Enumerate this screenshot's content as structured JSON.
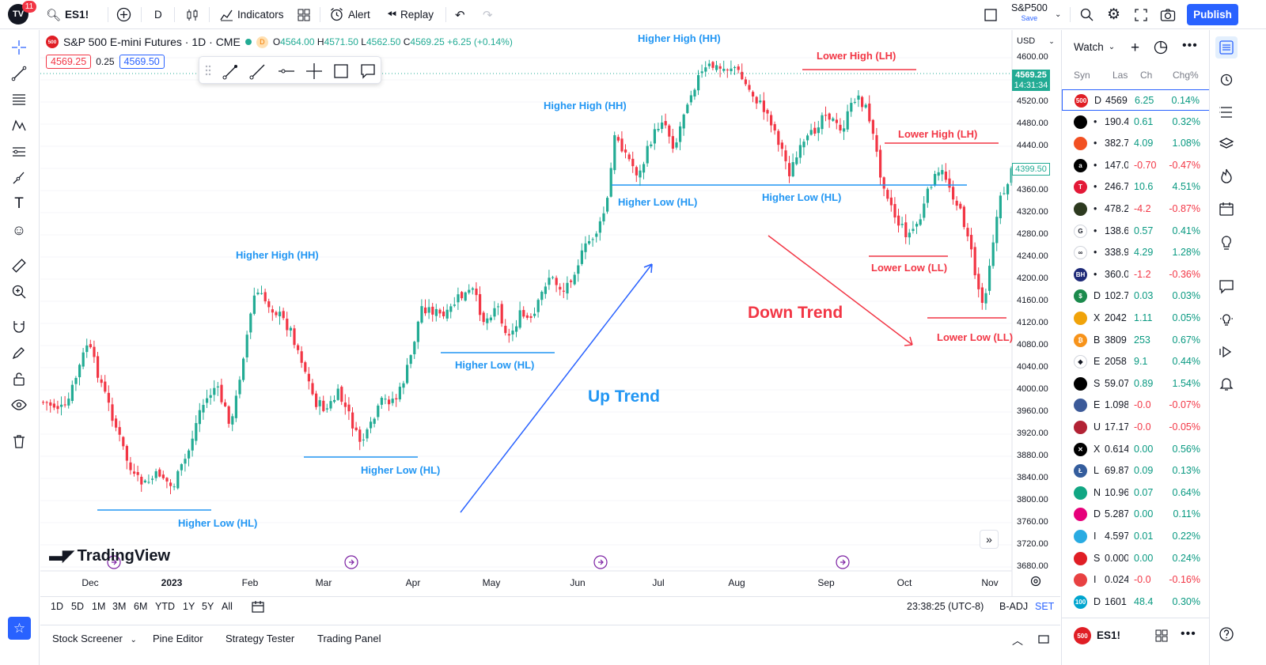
{
  "topbar": {
    "notifications": "11",
    "symbol": "ES1!",
    "interval": "D",
    "indicators": "Indicators",
    "alert": "Alert",
    "replay": "Replay",
    "layout_name": "S&P500",
    "layout_status": "Save",
    "publish": "Publish"
  },
  "legend": {
    "badge": "500",
    "title": "S&P 500 E-mini Futures · 1D · CME",
    "d_badge": "D",
    "open_label": "O",
    "open": "4564.00",
    "high_label": "H",
    "high": "4571.50",
    "low_label": "L",
    "low": "4562.50",
    "close_label": "C",
    "close": "4569.25",
    "change": "+6.25 (+0.14%)",
    "bid": "4569.25",
    "spread": "0.25",
    "ask": "4569.50"
  },
  "price_axis": {
    "currency": "USD",
    "labels": [
      "4600.00",
      "4560.00",
      "4520.00",
      "4480.00",
      "4440.00",
      "4400.00",
      "4360.00",
      "4320.00",
      "4280.00",
      "4240.00",
      "4200.00",
      "4160.00",
      "4120.00",
      "4080.00",
      "4040.00",
      "4000.00",
      "3960.00",
      "3920.00",
      "3880.00",
      "3840.00",
      "3800.00",
      "3760.00",
      "3720.00",
      "3680.00"
    ],
    "current_price": "4569.25",
    "countdown": "14:31:34",
    "alert_price": "4399.50"
  },
  "time_axis": [
    "Dec",
    "2023",
    "Feb",
    "Mar",
    "Apr",
    "May",
    "Jun",
    "Jul",
    "Aug",
    "Sep",
    "Oct",
    "Nov"
  ],
  "annotations": {
    "hl1": "Higher Low (HL)",
    "hh1": "Higher High (HH)",
    "hl2": "Higher Low (HL)",
    "hl3": "Higher Low (HL)",
    "hh2": "Higher High (HH)",
    "hl4": "Higher Low (HL)",
    "hh3": "Higher High (HH)",
    "hl5": "Higher Low (HL)",
    "lh1": "Lower High (LH)",
    "lh2": "Lower High (LH)",
    "ll1": "Lower Low (LL)",
    "ll2": "Lower Low (LL)",
    "up_trend": "Up Trend",
    "down_trend": "Down Trend"
  },
  "branding": {
    "name": "TradingView"
  },
  "periods": [
    "1D",
    "5D",
    "1M",
    "3M",
    "6M",
    "YTD",
    "1Y",
    "5Y",
    "All"
  ],
  "statusbar": {
    "clock": "23:38:25 (UTC-8)",
    "adj": "B-ADJ",
    "set": "SET"
  },
  "bottom_tabs": [
    "Stock Screener",
    "Pine Editor",
    "Strategy Tester",
    "Trading Panel"
  ],
  "watchlist": {
    "title": "Watch",
    "columns": {
      "symbol": "Syn",
      "last": "Las",
      "change": "Ch",
      "change_pct": "Chg%"
    },
    "footer_symbol": "ES1!",
    "footer_badge": "500",
    "rows": [
      {
        "icon": "500",
        "color": "#e01e25",
        "sym": "D",
        "last": "4569",
        "ch": "6.25",
        "chp": "0.14%",
        "dir": "pos",
        "selected": true
      },
      {
        "icon": "",
        "color": "#000000",
        "sym": "•",
        "last": "190.4",
        "ch": "0.61",
        "chp": "0.32%",
        "dir": "pos"
      },
      {
        "icon": "",
        "color": "#f25022",
        "sym": "•",
        "last": "382.7",
        "ch": "4.09",
        "chp": "1.08%",
        "dir": "pos"
      },
      {
        "icon": "a",
        "color": "#000000",
        "sym": "•",
        "last": "147.0",
        "ch": "-0.70",
        "chp": "-0.47%",
        "dir": "neg"
      },
      {
        "icon": "T",
        "color": "#e31937",
        "sym": "•",
        "last": "246.7",
        "ch": "10.6",
        "chp": "4.51%",
        "dir": "pos"
      },
      {
        "icon": "",
        "color": "#2d3a1f",
        "sym": "•",
        "last": "478.2",
        "ch": "-4.2",
        "chp": "-0.87%",
        "dir": "neg"
      },
      {
        "icon": "G",
        "color": "#ffffff",
        "sym": "•",
        "last": "138.6",
        "ch": "0.57",
        "chp": "0.41%",
        "dir": "pos"
      },
      {
        "icon": "∞",
        "color": "#ffffff",
        "sym": "•",
        "last": "338.9",
        "ch": "4.29",
        "chp": "1.28%",
        "dir": "pos"
      },
      {
        "icon": "BH",
        "color": "#1e2a78",
        "sym": "•",
        "last": "360.0",
        "ch": "-1.2",
        "chp": "-0.36%",
        "dir": "neg"
      },
      {
        "icon": "$",
        "color": "#1b8a4c",
        "sym": "D",
        "last": "102.7",
        "ch": "0.03",
        "chp": "0.03%",
        "dir": "pos"
      },
      {
        "icon": "",
        "color": "#f0a30a",
        "sym": "X",
        "last": "2042",
        "ch": "1.11",
        "chp": "0.05%",
        "dir": "pos"
      },
      {
        "icon": "₿",
        "color": "#f7931a",
        "sym": "B",
        "last": "3809",
        "ch": "253",
        "chp": "0.67%",
        "dir": "pos"
      },
      {
        "icon": "◆",
        "color": "#ffffff",
        "sym": "E",
        "last": "2058",
        "ch": "9.1",
        "chp": "0.44%",
        "dir": "pos"
      },
      {
        "icon": "",
        "color": "#000000",
        "sym": "S",
        "last": "59.07",
        "ch": "0.89",
        "chp": "1.54%",
        "dir": "pos"
      },
      {
        "icon": "",
        "color": "#3c5a99",
        "sym": "E",
        "last": "1.098",
        "ch": "-0.0",
        "chp": "-0.07%",
        "dir": "neg"
      },
      {
        "icon": "",
        "color": "#b22234",
        "sym": "U",
        "last": "17.17",
        "ch": "-0.0",
        "chp": "-0.05%",
        "dir": "neg"
      },
      {
        "icon": "✕",
        "color": "#000000",
        "sym": "X",
        "last": "0.614",
        "ch": "0.00",
        "chp": "0.56%",
        "dir": "pos"
      },
      {
        "icon": "Ł",
        "color": "#345d9d",
        "sym": "L",
        "last": "69.87",
        "ch": "0.09",
        "chp": "0.13%",
        "dir": "pos"
      },
      {
        "icon": "",
        "color": "#11a683",
        "sym": "N",
        "last": "10.96",
        "ch": "0.07",
        "chp": "0.64%",
        "dir": "pos"
      },
      {
        "icon": "",
        "color": "#e6007a",
        "sym": "D",
        "last": "5.287",
        "ch": "0.00",
        "chp": "0.11%",
        "dir": "pos"
      },
      {
        "icon": "",
        "color": "#29abe2",
        "sym": "I",
        "last": "4.597",
        "ch": "0.01",
        "chp": "0.22%",
        "dir": "pos"
      },
      {
        "icon": "",
        "color": "#e01e25",
        "sym": "S",
        "last": "0.000",
        "ch": "0.00",
        "chp": "0.24%",
        "dir": "pos"
      },
      {
        "icon": "",
        "color": "#e84142",
        "sym": "I",
        "last": "0.024",
        "ch": "-0.0",
        "chp": "-0.16%",
        "dir": "neg"
      },
      {
        "icon": "100",
        "color": "#00a5cf",
        "sym": "D",
        "last": "1601",
        "ch": "48.4",
        "chp": "0.30%",
        "dir": "pos"
      }
    ]
  },
  "colors": {
    "up": "#22ab94",
    "down": "#f23645",
    "accent": "#2962ff",
    "annotation_blue": "#2196f3"
  }
}
